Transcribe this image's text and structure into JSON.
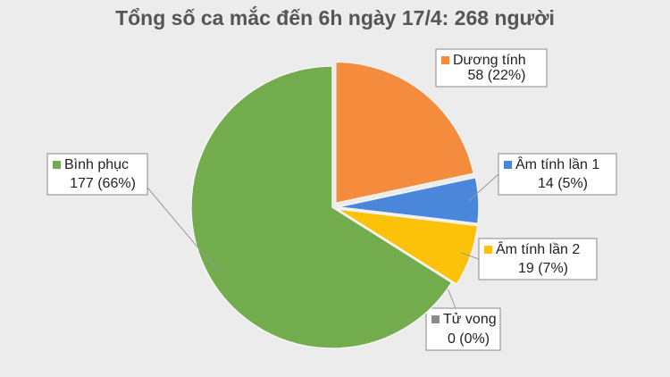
{
  "chart_data": {
    "type": "pie",
    "title": "Tổng số ca mắc đến 6h ngày 17/4: 268 người",
    "categories": [
      "Dương tính",
      "Âm tính lần 1",
      "Âm tính lần 2",
      "Tử vong",
      "Bình phục"
    ],
    "values": [
      58,
      14,
      19,
      0,
      177
    ],
    "value_labels": [
      "58 (22%)",
      "14 (5%)",
      "19 (7%)",
      "0 (0%)",
      "177 (66%)"
    ],
    "colors": [
      "#f58b3c",
      "#4a86d9",
      "#fcc20a",
      "#8c8c8c",
      "#72ac4d"
    ]
  }
}
